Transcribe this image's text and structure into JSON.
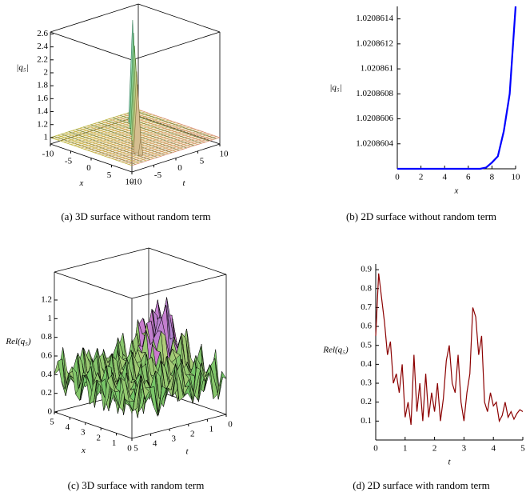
{
  "chart_data": [
    {
      "type": "surface3d",
      "caption": "(a)  3D surface without random term",
      "xlabel": "x",
      "ylabel": "t",
      "zlabel": "|q₅|",
      "xlim": [
        -10,
        10
      ],
      "xticks": [
        -10,
        -5,
        0,
        5,
        10
      ],
      "ylim": [
        -10,
        10
      ],
      "yticks": [
        -10,
        -5,
        0,
        5,
        10
      ],
      "zlim": [
        0.9,
        2.63
      ],
      "zticks": [
        1,
        1.2,
        1.4,
        1.6,
        1.8,
        2,
        2.2,
        2.4,
        2.6
      ]
    },
    {
      "type": "line",
      "caption": "(b)  2D surface without random term",
      "xlabel": "x",
      "ylabel": "|q₅|",
      "color": "#0000ff",
      "xlim": [
        0,
        10
      ],
      "xticks": [
        0,
        2,
        4,
        6,
        8,
        10
      ],
      "ylim": [
        1.0208602,
        1.0208615
      ],
      "yticks": [
        1.0208604,
        1.0208606,
        1.0208608,
        1.020861,
        1.0208612,
        1.0208614
      ],
      "x": [
        0,
        1,
        2,
        3,
        4,
        5,
        6,
        7,
        7.5,
        8,
        8.5,
        9,
        9.5,
        10
      ],
      "values": [
        1.0208602,
        1.0208602,
        1.0208602,
        1.0208602,
        1.0208602,
        1.0208602,
        1.0208602,
        1.0208602,
        1.02086021,
        1.02086025,
        1.0208603,
        1.0208605,
        1.0208608,
        1.0208615
      ]
    },
    {
      "type": "surface3d",
      "caption": "(c)  3D surface with random term",
      "xlabel": "x",
      "ylabel": "t",
      "zlabel": "Rel(q₅)",
      "xlim": [
        5,
        0
      ],
      "xticks": [
        5,
        4,
        3,
        2,
        1,
        0
      ],
      "ylim": [
        5,
        0
      ],
      "yticks": [
        5,
        4,
        3,
        2,
        1,
        0
      ],
      "zlim": [
        0,
        1.5
      ],
      "zticks": [
        0,
        0.2,
        0.4,
        0.6,
        0.8,
        1,
        1.2
      ]
    },
    {
      "type": "line",
      "caption": "(d)  2D surface with random term",
      "xlabel": "t",
      "ylabel": "Rel(q₅)",
      "color": "#8b0000",
      "xlim": [
        0,
        5
      ],
      "xticks": [
        0,
        1,
        2,
        3,
        4,
        5
      ],
      "ylim": [
        0,
        0.93
      ],
      "yticks": [
        0.1,
        0.2,
        0.3,
        0.4,
        0.5,
        0.6,
        0.7,
        0.8,
        0.9
      ],
      "x": [
        0,
        0.1,
        0.2,
        0.3,
        0.4,
        0.5,
        0.6,
        0.7,
        0.8,
        0.9,
        1,
        1.1,
        1.2,
        1.3,
        1.4,
        1.5,
        1.6,
        1.7,
        1.8,
        1.9,
        2,
        2.1,
        2.2,
        2.3,
        2.4,
        2.5,
        2.6,
        2.7,
        2.8,
        2.9,
        3,
        3.1,
        3.2,
        3.3,
        3.4,
        3.5,
        3.6,
        3.7,
        3.8,
        3.9,
        4,
        4.1,
        4.2,
        4.3,
        4.4,
        4.5,
        4.6,
        4.7,
        4.8,
        4.9,
        5
      ],
      "values": [
        0.55,
        0.88,
        0.75,
        0.62,
        0.45,
        0.52,
        0.3,
        0.35,
        0.25,
        0.4,
        0.12,
        0.2,
        0.08,
        0.45,
        0.15,
        0.3,
        0.1,
        0.35,
        0.12,
        0.25,
        0.15,
        0.3,
        0.1,
        0.22,
        0.42,
        0.5,
        0.3,
        0.25,
        0.45,
        0.2,
        0.1,
        0.25,
        0.35,
        0.7,
        0.65,
        0.45,
        0.55,
        0.2,
        0.15,
        0.25,
        0.18,
        0.2,
        0.1,
        0.13,
        0.2,
        0.12,
        0.15,
        0.11,
        0.14,
        0.16,
        0.15
      ]
    }
  ]
}
